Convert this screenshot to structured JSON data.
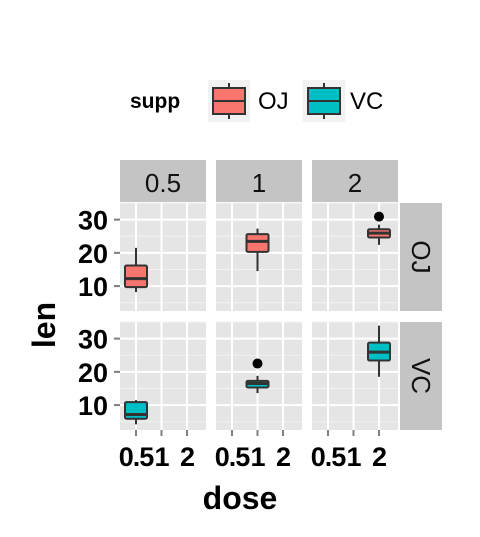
{
  "chart_data": {
    "type": "box",
    "xlabel": "dose",
    "ylabel": "len",
    "legend": {
      "title": "supp",
      "position": "top",
      "entries": [
        {
          "name": "OJ",
          "color": "#F8766D"
        },
        {
          "name": "VC",
          "color": "#00BFC4"
        }
      ]
    },
    "facet_cols": [
      "0.5",
      "1",
      "2"
    ],
    "facet_rows": [
      "OJ",
      "VC"
    ],
    "x_categories": [
      "0.5",
      "1",
      "2"
    ],
    "x_tick_labels": [
      "0.5",
      "1",
      "2"
    ],
    "y_ticks": [
      10,
      20,
      30
    ],
    "ylim": [
      2.5,
      35
    ],
    "grid": true,
    "boxes": [
      {
        "row": "OJ",
        "col": "0.5",
        "dose": "0.5",
        "min": 8.2,
        "q1": 9.7,
        "median": 12.25,
        "q3": 16.2,
        "max": 21.5,
        "outliers": []
      },
      {
        "row": "OJ",
        "col": "1",
        "dose": "1",
        "min": 14.5,
        "q1": 20.3,
        "median": 23.45,
        "q3": 25.65,
        "max": 27.3,
        "outliers": []
      },
      {
        "row": "OJ",
        "col": "2",
        "dose": "2",
        "min": 22.4,
        "q1": 24.6,
        "median": 25.95,
        "q3": 27.1,
        "max": 28.5,
        "outliers": [
          30.9
        ]
      },
      {
        "row": "VC",
        "col": "0.5",
        "dose": "0.5",
        "min": 4.2,
        "q1": 5.9,
        "median": 7.15,
        "q3": 10.9,
        "max": 11.5,
        "outliers": []
      },
      {
        "row": "VC",
        "col": "1",
        "dose": "1",
        "min": 13.6,
        "q1": 15.3,
        "median": 16.5,
        "q3": 17.3,
        "max": 18.8,
        "outliers": [
          22.5
        ]
      },
      {
        "row": "VC",
        "col": "2",
        "dose": "2",
        "min": 18.5,
        "q1": 23.4,
        "median": 25.95,
        "q3": 28.8,
        "max": 33.9,
        "outliers": []
      }
    ]
  }
}
